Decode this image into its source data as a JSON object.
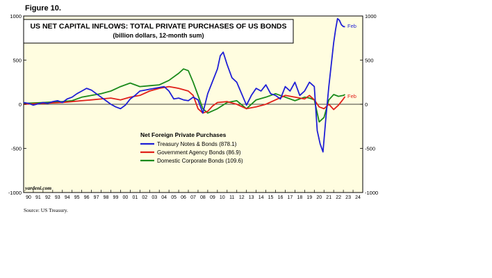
{
  "figure_label": "Figure 10.",
  "source": "Source: US Treasury.",
  "watermark": "yardeni.com",
  "chart_data": {
    "type": "line",
    "title": "US NET CAPITAL INFLOWS: TOTAL PRIVATE PURCHASES OF US BONDS",
    "subtitle": "(billion dollars, 12-month sum)",
    "legend_title": "Net Foreign Private Purchases",
    "legend_placement": "center-left",
    "ylim": [
      -1000,
      1000
    ],
    "y_ticks": [
      -1000,
      -500,
      0,
      500,
      1000
    ],
    "xlim": [
      1990,
      2025
    ],
    "x_ticks": [
      "90",
      "91",
      "92",
      "93",
      "94",
      "95",
      "96",
      "97",
      "98",
      "99",
      "00",
      "01",
      "02",
      "03",
      "04",
      "05",
      "06",
      "07",
      "08",
      "09",
      "10",
      "11",
      "12",
      "13",
      "14",
      "15",
      "16",
      "17",
      "18",
      "19",
      "20",
      "21",
      "22",
      "23",
      "24"
    ],
    "background": "#fffde0",
    "end_label": "Feb",
    "series": [
      {
        "name": "Treasury Notes & Bonds (878.1)",
        "color": "#1f1fd6",
        "x": [
          1990,
          1990.5,
          1991,
          1991.5,
          1992,
          1992.5,
          1993,
          1993.5,
          1994,
          1994.5,
          1995,
          1995.5,
          1996,
          1996.5,
          1997,
          1997.5,
          1998,
          1998.5,
          1999,
          1999.5,
          2000,
          2000.5,
          2001,
          2001.5,
          2002,
          2002.5,
          2003,
          2003.5,
          2004,
          2004.5,
          2005,
          2005.5,
          2006,
          2006.5,
          2007,
          2007.5,
          2008,
          2008.5,
          2009,
          2009.5,
          2010,
          2010.3,
          2010.6,
          2011,
          2011.5,
          2012,
          2012.5,
          2013,
          2013.5,
          2014,
          2014.5,
          2015,
          2015.5,
          2016,
          2016.5,
          2017,
          2017.5,
          2018,
          2018.5,
          2019,
          2019.5,
          2020,
          2020.3,
          2020.6,
          2020.9,
          2021.2,
          2021.5,
          2021.8,
          2022,
          2022.2,
          2022.4,
          2022.6,
          2022.8,
          2023,
          2023.17
        ],
        "values": [
          20,
          10,
          -10,
          5,
          20,
          10,
          30,
          40,
          20,
          60,
          80,
          120,
          150,
          180,
          160,
          120,
          80,
          40,
          0,
          -30,
          -50,
          -10,
          60,
          100,
          150,
          160,
          170,
          180,
          190,
          200,
          150,
          60,
          70,
          50,
          40,
          80,
          50,
          -100,
          120,
          260,
          400,
          550,
          590,
          450,
          300,
          250,
          120,
          -10,
          100,
          180,
          150,
          220,
          120,
          100,
          60,
          200,
          150,
          250,
          100,
          150,
          250,
          200,
          -300,
          -450,
          -540,
          -150,
          200,
          500,
          700,
          850,
          970,
          950,
          900,
          880,
          878
        ]
      },
      {
        "name": "Government Agency Bonds (86.9)",
        "color": "#e0201a",
        "x": [
          1990,
          1991,
          1992,
          1993,
          1994,
          1995,
          1996,
          1997,
          1998,
          1999,
          2000,
          2001,
          2002,
          2003,
          2004,
          2005,
          2006,
          2007,
          2007.5,
          2008,
          2008.5,
          2009,
          2009.5,
          2010,
          2011,
          2012,
          2013,
          2014,
          2015,
          2016,
          2017,
          2018,
          2019,
          2019.5,
          2020,
          2020.5,
          2021,
          2021.5,
          2022,
          2022.5,
          2023,
          2023.17
        ],
        "values": [
          0,
          5,
          10,
          15,
          20,
          30,
          40,
          50,
          60,
          70,
          50,
          80,
          100,
          150,
          180,
          200,
          180,
          150,
          100,
          -50,
          -100,
          -80,
          -20,
          20,
          30,
          0,
          -50,
          -30,
          0,
          50,
          100,
          80,
          60,
          100,
          50,
          -30,
          -50,
          0,
          -60,
          -10,
          60,
          87
        ]
      },
      {
        "name": "Domestic Corporate Bonds (109.6)",
        "color": "#1a8a1a",
        "x": [
          1990,
          1991,
          1992,
          1993,
          1994,
          1995,
          1996,
          1997,
          1998,
          1999,
          2000,
          2001,
          2002,
          2003,
          2004,
          2005,
          2006,
          2006.5,
          2007,
          2007.5,
          2008,
          2008.5,
          2009,
          2010,
          2011,
          2012,
          2013,
          2014,
          2015,
          2016,
          2017,
          2018,
          2019,
          2019.5,
          2020,
          2020.5,
          2021,
          2021.5,
          2022,
          2022.5,
          2023,
          2023.17
        ],
        "values": [
          10,
          15,
          20,
          25,
          30,
          40,
          80,
          100,
          120,
          150,
          200,
          240,
          200,
          210,
          220,
          270,
          350,
          400,
          380,
          250,
          100,
          -50,
          -100,
          -50,
          20,
          40,
          -50,
          50,
          80,
          120,
          80,
          40,
          80,
          70,
          50,
          -200,
          -150,
          50,
          110,
          90,
          100,
          110
        ]
      }
    ]
  }
}
